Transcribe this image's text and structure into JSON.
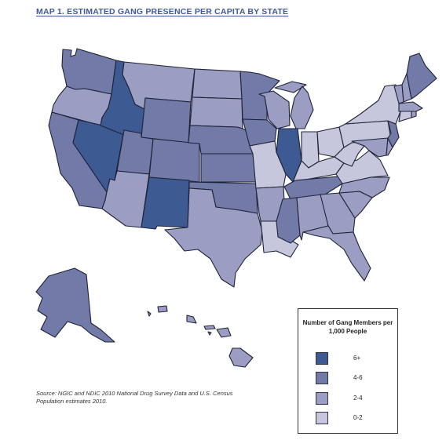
{
  "title": "MAP 1. ESTIMATED GANG PRESENCE PER CAPITA BY STATE",
  "source": "Source: NGIC and NDIC 2010 National Drug Survey Data and U.S. Census Population estimates 2010.",
  "legend": {
    "title": "Number of Gang Members per 1,000 People",
    "categories": [
      {
        "label": "6+",
        "color": "#3d5a93"
      },
      {
        "label": "4-6",
        "color": "#727aa8"
      },
      {
        "label": "2-4",
        "color": "#9b9dc3"
      },
      {
        "label": "0-2",
        "color": "#c6c7dd"
      }
    ]
  },
  "state_categories": {
    "CA": "4-6",
    "NV": "6+",
    "ID": "6+",
    "NM": "6+",
    "IL": "6+",
    "WA": "4-6",
    "WY": "4-6",
    "UT": "4-6",
    "CO": "4-6",
    "NE": "4-6",
    "KS": "4-6",
    "OK": "4-6",
    "MN": "4-6",
    "IA": "4-6",
    "TN": "4-6",
    "MS": "4-6",
    "ME": "4-6",
    "NJ": "4-6",
    "AK": "4-6",
    "OR": "2-4",
    "MT": "2-4",
    "ND": "2-4",
    "SD": "2-4",
    "AZ": "2-4",
    "TX": "2-4",
    "AR": "2-4",
    "WI": "2-4",
    "MI": "2-4",
    "AL": "2-4",
    "GA": "2-4",
    "SC": "2-4",
    "NC": "2-4",
    "FL": "2-4",
    "MD": "2-4",
    "DE": "2-4",
    "NH": "2-4",
    "VT": "2-4",
    "MA": "2-4",
    "RI": "2-4",
    "HI": "2-4",
    "MO": "0-2",
    "LA": "0-2",
    "IN": "0-2",
    "OH": "0-2",
    "KY": "0-2",
    "WV": "0-2",
    "VA": "0-2",
    "PA": "0-2",
    "NY": "0-2",
    "CT": "0-2"
  }
}
